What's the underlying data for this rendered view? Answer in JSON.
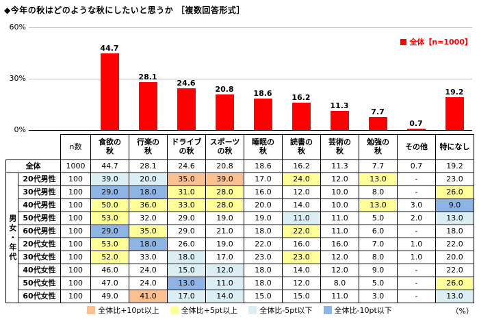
{
  "title": "◆今年の秋はどのような秋にしたいと思うか ［複数回答形式］",
  "chart_data": {
    "type": "bar",
    "title": "今年の秋はどのような秋にしたいと思うか［複数回答形式］",
    "categories": [
      "食欲の秋",
      "行楽の秋",
      "ドライブの秋",
      "スポーツの秋",
      "睡眠の秋",
      "読書の秋",
      "芸術の秋",
      "勉強の秋",
      "その他",
      "特になし"
    ],
    "values": [
      44.7,
      28.1,
      24.6,
      20.8,
      18.6,
      16.2,
      11.3,
      7.7,
      0.7,
      19.2
    ],
    "xlabel": "",
    "ylabel": "",
    "ylim": [
      0,
      60
    ],
    "y_ticks": [
      "60%",
      "30%",
      "0%"
    ],
    "grid": true,
    "legend": "全体【n=1000】",
    "legend_position": "top-right",
    "bar_color": "#ff0000"
  },
  "table": {
    "n_label": "n数",
    "group_label": "男女・年代",
    "overall_label": "全体",
    "overall_n": "1000",
    "col_headers": [
      "食欲の\n秋",
      "行楽の\n秋",
      "ドライブ\nの秋",
      "スポーツ\nの秋",
      "睡眠の\n秋",
      "読書の\n秋",
      "芸術の\n秋",
      "勉強の\n秋",
      "その他",
      "特になし"
    ],
    "rows": [
      {
        "label": "20代男性",
        "n": "100",
        "values": [
          "39.0",
          "20.0",
          "35.0",
          "39.0",
          "17.0",
          "24.0",
          "12.0",
          "13.0",
          "-",
          "23.0"
        ]
      },
      {
        "label": "30代男性",
        "n": "100",
        "values": [
          "29.0",
          "18.0",
          "31.0",
          "28.0",
          "16.0",
          "12.0",
          "10.0",
          "8.0",
          "-",
          "26.0"
        ]
      },
      {
        "label": "40代男性",
        "n": "100",
        "values": [
          "50.0",
          "36.0",
          "33.0",
          "28.0",
          "20.0",
          "14.0",
          "10.0",
          "13.0",
          "3.0",
          "9.0"
        ]
      },
      {
        "label": "50代男性",
        "n": "100",
        "values": [
          "53.0",
          "32.0",
          "29.0",
          "19.0",
          "19.0",
          "11.0",
          "11.0",
          "5.0",
          "2.0",
          "13.0"
        ]
      },
      {
        "label": "60代男性",
        "n": "100",
        "values": [
          "29.0",
          "35.0",
          "29.0",
          "21.0",
          "18.0",
          "22.0",
          "11.0",
          "6.0",
          "-",
          "18.0"
        ]
      },
      {
        "label": "20代女性",
        "n": "100",
        "values": [
          "53.0",
          "18.0",
          "26.0",
          "19.0",
          "22.0",
          "16.0",
          "16.0",
          "7.0",
          "1.0",
          "22.0"
        ]
      },
      {
        "label": "30代女性",
        "n": "100",
        "values": [
          "52.0",
          "33.0",
          "18.0",
          "17.0",
          "23.0",
          "23.0",
          "12.0",
          "8.0",
          "1.0",
          "20.0"
        ]
      },
      {
        "label": "40代女性",
        "n": "100",
        "values": [
          "46.0",
          "24.0",
          "15.0",
          "12.0",
          "18.0",
          "14.0",
          "12.0",
          "9.0",
          "-",
          "22.0"
        ]
      },
      {
        "label": "50代女性",
        "n": "100",
        "values": [
          "47.0",
          "24.0",
          "13.0",
          "11.0",
          "18.0",
          "12.0",
          "8.0",
          "5.0",
          "-",
          "26.0"
        ]
      },
      {
        "label": "60代女性",
        "n": "100",
        "values": [
          "49.0",
          "41.0",
          "17.0",
          "14.0",
          "15.0",
          "15.0",
          "11.0",
          "3.0",
          "-",
          "13.0"
        ]
      }
    ]
  },
  "legend": {
    "items": [
      {
        "label": "全体比+10pt以上",
        "color": "#fac090"
      },
      {
        "label": "全体比+5pt以上",
        "color": "#ffff99"
      },
      {
        "label": "全体比-5pt以下",
        "color": "#daeef3"
      },
      {
        "label": "全体比-10pt以下",
        "color": "#8eb4e3"
      }
    ],
    "thresholds": {
      "plus10": 10,
      "plus5": 5,
      "minus5": -5,
      "minus10": -10
    },
    "unit": "（%）"
  }
}
